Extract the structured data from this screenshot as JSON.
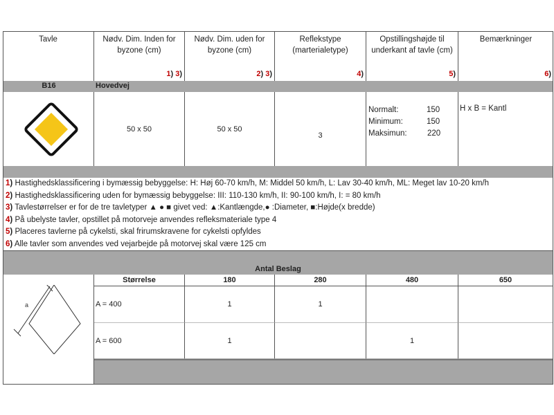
{
  "header": {
    "columns": [
      {
        "label": "Tavle",
        "footnotes": []
      },
      {
        "label": "Nødv. Dim. Inden for byzone (cm)",
        "footnotes": [
          "1",
          "3"
        ]
      },
      {
        "label": "Nødv. Dim. uden for byzone (cm)",
        "footnotes": [
          "2",
          "3"
        ]
      },
      {
        "label": "Reflekstype (marterialetype)",
        "footnotes": [
          "4"
        ]
      },
      {
        "label": "Opstillingshøjde til underkant af tavle (cm)",
        "footnotes": [
          "5"
        ]
      },
      {
        "label": "Bemærkninger",
        "footnotes": [
          "6"
        ]
      }
    ]
  },
  "sign": {
    "code": "B16",
    "name": "Hovedvej",
    "icon": "priority-road-sign-icon",
    "dim_inside": "50 x 50",
    "dim_outside": "50 x 50",
    "reflex": "3",
    "heights": [
      {
        "label": "Normalt:",
        "value": "150"
      },
      {
        "label": "Minimum:",
        "value": "150"
      },
      {
        "label": "Maksimun:",
        "value": "220"
      }
    ],
    "remark": "H x B = Kantl"
  },
  "notes": [
    {
      "num": "1",
      "text": "Hastighedsklassificering i bymæssig bebyggelse: H: Høj 60-70 km/h, M: Middel 50 km/h, L: Lav 30-40 km/h, ML: Meget lav 10-20 km/h"
    },
    {
      "num": "2",
      "text": "Hastighedsklassificering uden for bymæssig bebyggelse: III: 110-130 km/h, II: 90-100 km/h, I: = 80 km/h"
    },
    {
      "num": "3",
      "text": "Tavlestørrelser er for de tre tavletyper ▲ ● ■ givet ved: ▲:Kantlængde,● :Diameter, ■:Højde(x bredde)"
    },
    {
      "num": "4",
      "text": "På ubelyste tavler, opstillet på motorveje anvendes refleksmateriale type 4"
    },
    {
      "num": "5",
      "text": "Placeres tavlerne på cykelsti, skal frirumskravene for cykelsti opfyldes"
    },
    {
      "num": "6",
      "text": "Alle tavler som anvendes ved vejarbejde på motorvej skal være 125 cm"
    }
  ],
  "beslag": {
    "title": "Antal Beslag",
    "diagram_label": "a",
    "columns": [
      "Størrelse",
      "180",
      "280",
      "480",
      "650"
    ],
    "rows": [
      [
        "A = 400",
        "1",
        "1",
        "",
        ""
      ],
      [
        "A = 600",
        "1",
        "",
        "1",
        ""
      ]
    ]
  },
  "colors": {
    "gray": "#a6a6a6",
    "footnote": "#c00000",
    "sign_yellow": "#f5c518"
  }
}
